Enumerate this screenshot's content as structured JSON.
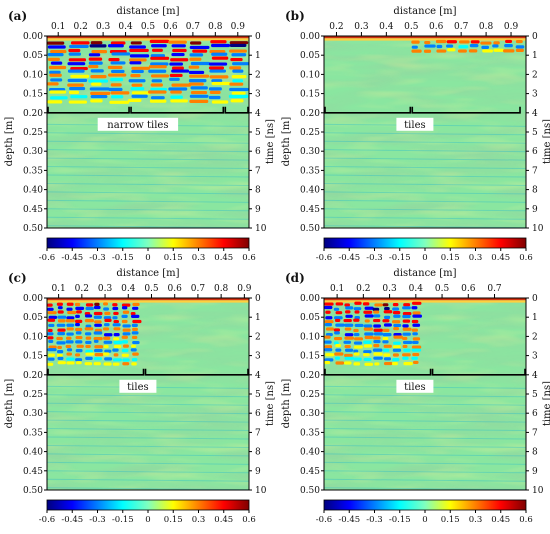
{
  "figure": {
    "panels": [
      {
        "id": "a",
        "label": "(a)",
        "xlabel": "distance [m]",
        "ylabel_left": "depth [m]",
        "ylabel_right": "time [ns]",
        "xticks": [
          "0.1",
          "0.2",
          "0.3",
          "0.4",
          "0.5",
          "0.6",
          "0.7",
          "0.8",
          "0.9"
        ],
        "annotation": "narrow tiles",
        "colorbar_ticks": [
          "-0.6",
          "-0.45",
          "-0.3",
          "-0.15",
          "0",
          "0.15",
          "0.3",
          "0.45",
          "0.6"
        ]
      },
      {
        "id": "b",
        "label": "(b)",
        "xlabel": "distance [m]",
        "ylabel_left": "depth [m]",
        "ylabel_right": "time [ns]",
        "xticks": [
          "0.2",
          "0.3",
          "0.4",
          "0.5",
          "0.6",
          "0.7",
          "0.8",
          "0.9"
        ],
        "annotation": "tiles",
        "colorbar_ticks": [
          "-0.6",
          "-0.45",
          "-0.3",
          "-0.15",
          "0",
          "0.15",
          "0.3",
          "0.45",
          "0.6"
        ]
      },
      {
        "id": "c",
        "label": "(c)",
        "xlabel": "distance [m]",
        "ylabel_left": "depth [m]",
        "ylabel_right": "time [ns]",
        "xticks": [
          "0.1",
          "0.2",
          "0.3",
          "0.4",
          "0.5",
          "0.6",
          "0.7",
          "0.8",
          "0.9"
        ],
        "annotation": "tiles",
        "colorbar_ticks": [
          "-0.6",
          "-0.45",
          "-0.3",
          "-0.15",
          "0",
          "0.15",
          "0.3",
          "0.45",
          "0.6"
        ]
      },
      {
        "id": "d",
        "label": "(d)",
        "xlabel": "distance [m]",
        "ylabel_left": "depth [m]",
        "ylabel_right": "time [ns]",
        "xticks": [
          "0.1",
          "0.2",
          "0.3",
          "0.4",
          "0.5",
          "0.6",
          "0.7"
        ],
        "annotation": "tiles",
        "colorbar_ticks": [
          "-0.6",
          "-0.45",
          "-0.3",
          "-0.15",
          "0",
          "0.15",
          "0.3",
          "0.45",
          "0.6"
        ]
      }
    ],
    "colors": {
      "colormap": [
        "#00007f",
        "#0000ff",
        "#007fff",
        "#00ffff",
        "#7fffbf",
        "#ffff00",
        "#ff7f00",
        "#ff0000",
        "#7f0000"
      ],
      "background": "#8ae6a0",
      "axis": "#000000"
    }
  },
  "chart_data": [
    {
      "type": "heatmap",
      "panel": "a",
      "x_range": [
        0.05,
        0.95
      ],
      "xticks": [
        0.1,
        0.2,
        0.3,
        0.4,
        0.5,
        0.6,
        0.7,
        0.8,
        0.9
      ],
      "depth_range": [
        0.0,
        0.5
      ],
      "depth_ticks": [
        "0.00",
        "0.05",
        "0.10",
        "0.15",
        "0.20",
        "0.25",
        "0.30",
        "0.35",
        "0.40",
        "0.45",
        "0.50"
      ],
      "time_range": [
        0,
        10
      ],
      "time_ticks": [
        "0",
        "1",
        "2",
        "3",
        "4",
        "5",
        "6",
        "7",
        "8",
        "9",
        "10"
      ],
      "color_range": [
        -0.6,
        0.6
      ],
      "annotation": {
        "text": "narrow tiles",
        "depth": 0.2,
        "brackets": [
          [
            0.05,
            0.42
          ],
          [
            0.42,
            0.84
          ],
          [
            0.84,
            0.95
          ]
        ]
      },
      "strong_reflections": {
        "x": [
          0.05,
          0.95
        ],
        "depth": [
          0.0,
          0.17
        ]
      }
    },
    {
      "type": "heatmap",
      "panel": "b",
      "x_range": [
        0.15,
        0.96
      ],
      "xticks": [
        0.2,
        0.3,
        0.4,
        0.5,
        0.6,
        0.7,
        0.8,
        0.9
      ],
      "depth_range": [
        0.0,
        0.5
      ],
      "depth_ticks": [
        "0.00",
        "0.05",
        "0.10",
        "0.15",
        "0.20",
        "0.25",
        "0.30",
        "0.35",
        "0.40",
        "0.45",
        "0.50"
      ],
      "time_range": [
        0,
        10
      ],
      "time_ticks": [
        "0",
        "1",
        "2",
        "3",
        "4",
        "5",
        "6",
        "7",
        "8",
        "9",
        "10"
      ],
      "color_range": [
        -0.6,
        0.6
      ],
      "annotation": {
        "text": "tiles",
        "depth": 0.2,
        "brackets": [
          [
            0.15,
            0.5
          ],
          [
            0.5,
            0.94
          ]
        ]
      },
      "strong_reflections": {
        "x": [
          0.5,
          0.96
        ],
        "depth": [
          0.0,
          0.04
        ]
      }
    },
    {
      "type": "heatmap",
      "panel": "c",
      "x_range": [
        0.05,
        0.92
      ],
      "xticks": [
        0.1,
        0.2,
        0.3,
        0.4,
        0.5,
        0.6,
        0.7,
        0.8,
        0.9
      ],
      "depth_range": [
        0.0,
        0.5
      ],
      "depth_ticks": [
        "0.00",
        "0.05",
        "0.10",
        "0.15",
        "0.20",
        "0.25",
        "0.30",
        "0.35",
        "0.40",
        "0.45",
        "0.50"
      ],
      "time_range": [
        0,
        10
      ],
      "time_ticks": [
        "0",
        "1",
        "2",
        "3",
        "4",
        "5",
        "6",
        "7",
        "8",
        "9",
        "10"
      ],
      "color_range": [
        -0.6,
        0.6
      ],
      "annotation": {
        "text": "tiles",
        "depth": 0.2,
        "brackets": [
          [
            0.05,
            0.47
          ],
          [
            0.47,
            0.92
          ]
        ]
      },
      "strong_reflections": {
        "x": [
          0.05,
          0.45
        ],
        "depth": [
          0.0,
          0.17
        ]
      }
    },
    {
      "type": "heatmap",
      "panel": "d",
      "x_range": [
        0.05,
        0.82
      ],
      "xticks": [
        0.1,
        0.2,
        0.3,
        0.4,
        0.5,
        0.6,
        0.7
      ],
      "depth_range": [
        0.0,
        0.5
      ],
      "depth_ticks": [
        "0.00",
        "0.05",
        "0.10",
        "0.15",
        "0.20",
        "0.25",
        "0.30",
        "0.35",
        "0.40",
        "0.45",
        "0.50"
      ],
      "time_range": [
        0,
        10
      ],
      "time_ticks": [
        "0",
        "1",
        "2",
        "3",
        "4",
        "5",
        "6",
        "7",
        "8",
        "9",
        "10"
      ],
      "color_range": [
        -0.6,
        0.6
      ],
      "annotation": {
        "text": "tiles",
        "depth": 0.2,
        "brackets": [
          [
            0.05,
            0.46
          ],
          [
            0.46,
            0.82
          ]
        ]
      },
      "strong_reflections": {
        "x": [
          0.05,
          0.42
        ],
        "depth": [
          0.0,
          0.17
        ]
      }
    }
  ]
}
